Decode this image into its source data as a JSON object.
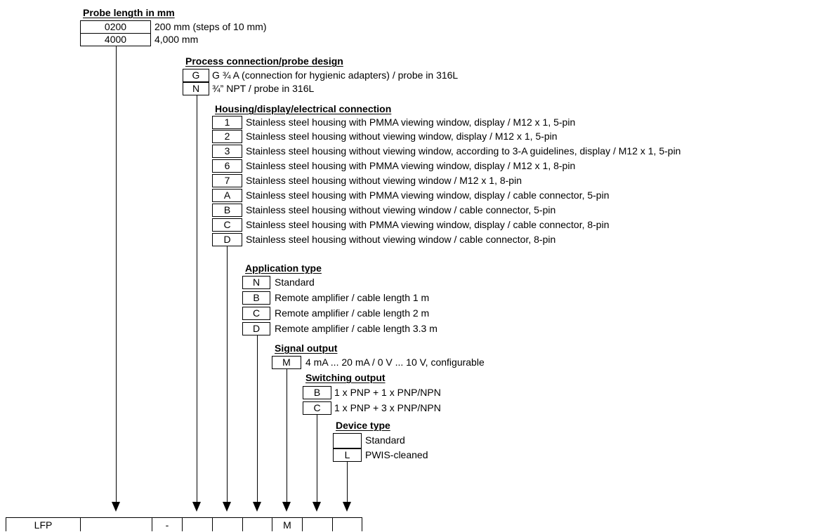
{
  "groups": {
    "probe_length": {
      "title": "Probe length in mm",
      "options": [
        {
          "code": "0200",
          "desc": "200 mm (steps of 10 mm)"
        },
        {
          "code": "4000",
          "desc": "4,000 mm"
        }
      ]
    },
    "process_connection": {
      "title": "Process connection/probe design",
      "options": [
        {
          "code": "G",
          "desc": "G ¾ A (connection for hygienic adapters) / probe in 316L"
        },
        {
          "code": "N",
          "desc": "¾” NPT / probe in 316L"
        }
      ]
    },
    "housing": {
      "title": "Housing/display/electrical connection",
      "options": [
        {
          "code": "1",
          "desc": "Stainless steel housing with PMMA viewing window, display / M12 x 1, 5-pin"
        },
        {
          "code": "2",
          "desc": "Stainless steel housing without viewing window, display / M12 x 1, 5-pin"
        },
        {
          "code": "3",
          "desc": "Stainless steel housing without viewing window, according to 3-A guidelines, display / M12 x 1, 5-pin"
        },
        {
          "code": "6",
          "desc": "Stainless steel housing with PMMA viewing window, display / M12 x 1, 8-pin"
        },
        {
          "code": "7",
          "desc": "Stainless steel housing without viewing window / M12 x 1, 8-pin"
        },
        {
          "code": "A",
          "desc": "Stainless steel housing with PMMA viewing window, display / cable connector, 5-pin"
        },
        {
          "code": "B",
          "desc": "Stainless steel housing without viewing window / cable connector, 5-pin"
        },
        {
          "code": "C",
          "desc": "Stainless steel housing with PMMA viewing window, display / cable connector, 8-pin"
        },
        {
          "code": "D",
          "desc": "Stainless steel housing without viewing window / cable connector, 8-pin"
        }
      ]
    },
    "application_type": {
      "title": "Application type",
      "options": [
        {
          "code": "N",
          "desc": "Standard"
        },
        {
          "code": "B",
          "desc": "Remote amplifier / cable length 1 m"
        },
        {
          "code": "C",
          "desc": "Remote amplifier / cable length 2 m"
        },
        {
          "code": "D",
          "desc": "Remote amplifier / cable length 3.3 m"
        }
      ]
    },
    "signal_output": {
      "title": "Signal output",
      "options": [
        {
          "code": "M",
          "desc": "4 mA ... 20 mA / 0 V ... 10 V, configurable"
        }
      ]
    },
    "switching_output": {
      "title": "Switching output",
      "options": [
        {
          "code": "B",
          "desc": "1 x PNP + 1 x PNP/NPN"
        },
        {
          "code": "C",
          "desc": "1 x PNP + 3 x PNP/NPN"
        }
      ]
    },
    "device_type": {
      "title": "Device type",
      "options": [
        {
          "code": "",
          "desc": "Standard"
        },
        {
          "code": "L",
          "desc": "PWIS-cleaned"
        }
      ]
    }
  },
  "type_code": [
    "LFP",
    "",
    "-",
    "",
    "",
    "",
    "M",
    "",
    ""
  ]
}
